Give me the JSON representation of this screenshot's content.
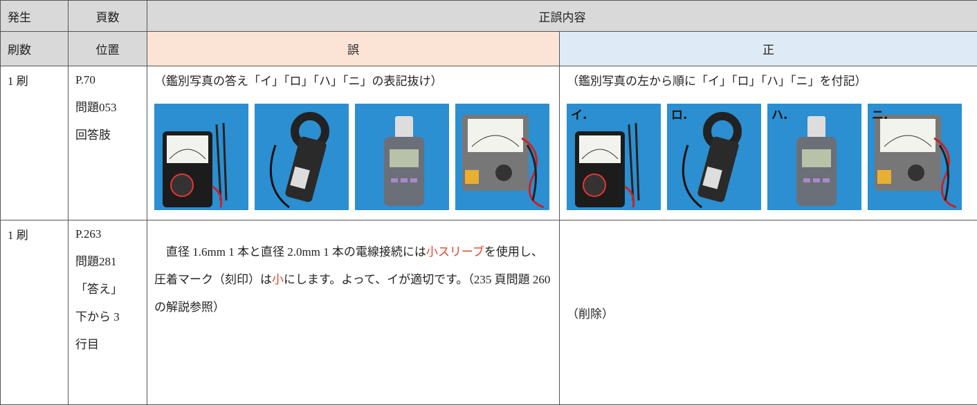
{
  "table": {
    "header": {
      "row1": [
        "発生",
        "頁数",
        "正誤内容"
      ],
      "row2": [
        "刷数",
        "位置",
        "誤",
        "正"
      ]
    },
    "rows": [
      {
        "print": "1 刷",
        "location": [
          "P.70",
          "問題053",
          "回答肢"
        ],
        "wrong": {
          "text": "（鑑別写真の答え「イ」「ロ」「ハ」「ニ」の表記抜け）"
        },
        "correct": {
          "text": "（鑑別写真の左から順に「イ」「ロ」「ハ」「ニ」を付記）",
          "photo_labels": [
            "イ.",
            "ロ.",
            "ハ.",
            "ニ."
          ]
        }
      },
      {
        "print": "1 刷",
        "location": [
          "P.263",
          "問題281",
          "「答え」",
          "下から 3",
          "行目"
        ],
        "wrong": {
          "segments": [
            {
              "text": "直径 1.6mm 1 本と直径 2.0mm 1 本の電線接続には",
              "color": "#222222"
            },
            {
              "text": "小スリーブ",
              "color": "#e0452b"
            },
            {
              "text": "を使用し、圧着マーク（刻印）は",
              "color": "#222222"
            },
            {
              "text": "小",
              "color": "#e0452b"
            },
            {
              "text": "にします。よって、イが適切です。（235 頁問題 260 の解説参照）",
              "color": "#222222"
            }
          ]
        },
        "correct": {
          "text": "（削除）"
        }
      }
    ]
  }
}
